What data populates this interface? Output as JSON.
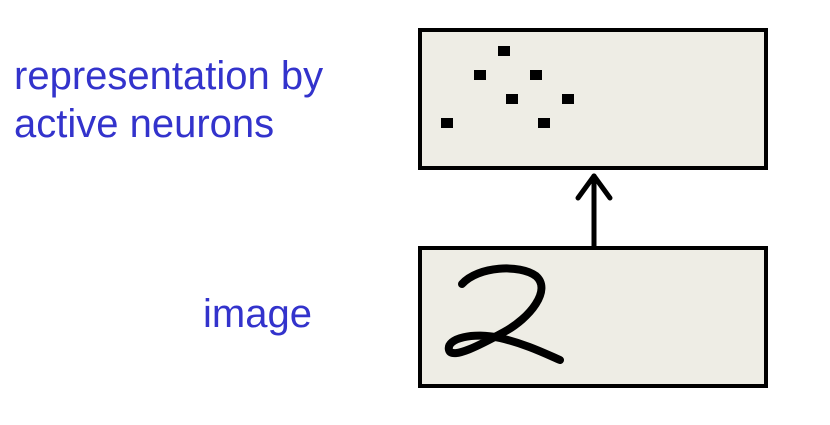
{
  "labels": {
    "representation_line1": "representation by",
    "representation_line2": "active neurons",
    "image": "image"
  },
  "neuron_count": 7,
  "colors": {
    "label_text": "#3333cc",
    "box_fill": "#eeede5",
    "box_stroke": "#000000",
    "neuron_dot": "#000000",
    "arrow": "#000000"
  },
  "icons": {
    "arrow": "up-arrow-icon",
    "digit": "handwritten-digit-two"
  }
}
